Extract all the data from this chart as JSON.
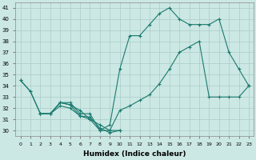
{
  "xlabel": "Humidex (Indice chaleur)",
  "xlim": [
    -0.5,
    23.5
  ],
  "ylim": [
    29.5,
    41.5
  ],
  "xticks": [
    0,
    1,
    2,
    3,
    4,
    5,
    6,
    7,
    8,
    9,
    10,
    11,
    12,
    13,
    14,
    15,
    16,
    17,
    18,
    19,
    20,
    21,
    22,
    23
  ],
  "yticks": [
    30,
    31,
    32,
    33,
    34,
    35,
    36,
    37,
    38,
    39,
    40,
    41
  ],
  "bg_color": "#cce8e4",
  "line_color": "#1a7a6e",
  "grid_color": "#aaccc8",
  "line1_x": [
    0,
    1,
    2,
    3,
    4,
    5,
    6,
    7,
    8,
    9,
    10,
    11,
    12,
    13,
    14,
    15,
    16,
    17,
    18,
    19,
    20,
    21,
    22,
    23
  ],
  "line1_y": [
    34.5,
    33.5,
    31.5,
    31.5,
    32.5,
    32.5,
    31.5,
    31.5,
    30.0,
    30.5,
    35.5,
    38.5,
    38.5,
    39.5,
    40.5,
    41.0,
    40.0,
    39.5,
    39.5,
    39.5,
    40.0,
    37.0,
    35.5,
    34.0
  ],
  "line2_x": [
    0,
    1,
    2,
    3,
    4,
    5,
    6,
    7,
    8,
    9,
    10,
    11,
    12,
    13,
    14,
    15,
    16,
    17,
    18,
    19,
    20,
    21,
    22,
    23
  ],
  "line2_y": [
    34.5,
    33.5,
    31.5,
    31.5,
    32.5,
    32.3,
    31.3,
    31.0,
    30.0,
    30.0,
    31.8,
    32.2,
    32.7,
    33.2,
    34.2,
    35.5,
    37.0,
    37.5,
    38.0,
    33.0,
    33.0,
    33.0,
    33.0,
    34.0
  ],
  "line3_x": [
    2,
    3,
    4,
    5,
    6,
    7,
    8,
    9,
    10
  ],
  "line3_y": [
    31.5,
    31.5,
    32.5,
    32.3,
    31.8,
    31.0,
    30.5,
    30.0,
    30.0
  ],
  "line4_x": [
    2,
    3,
    4,
    5,
    6,
    7,
    8,
    9,
    10
  ],
  "line4_y": [
    31.5,
    31.5,
    32.2,
    32.0,
    31.3,
    31.2,
    30.2,
    29.8,
    30.0
  ]
}
